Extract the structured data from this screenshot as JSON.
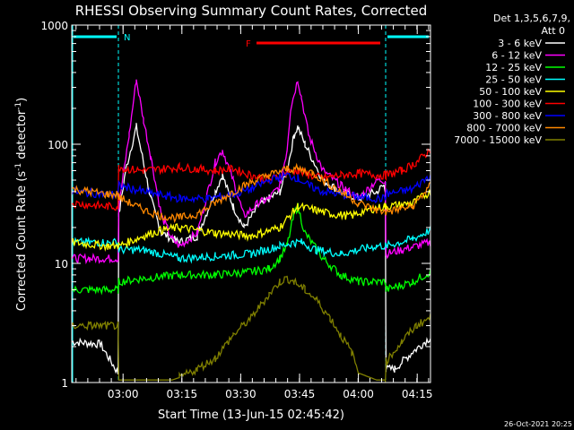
{
  "chart_data": {
    "type": "line",
    "title": "RHESSI Observing Summary Count Rates, Corrected",
    "xlabel": "Start Time (13-Jun-15 02:45:42)",
    "ylabel": "Corrected Count Rate (s⁻¹ detector⁻¹)",
    "ylabel_parts": [
      "Corrected Count Rate (s",
      "-1",
      " detector",
      "-1",
      ")"
    ],
    "yscale": "log",
    "ylim": [
      1,
      1000
    ],
    "xlim": [
      0,
      100
    ],
    "y_ticks": [
      {
        "value": 1,
        "label": "1"
      },
      {
        "value": 10,
        "label": "10"
      },
      {
        "value": 100,
        "label": "100"
      },
      {
        "value": 1000,
        "label": "1000"
      }
    ],
    "x_ticks": [
      {
        "value": 14.3,
        "label": "03:00"
      },
      {
        "value": 30.7,
        "label": "03:15"
      },
      {
        "value": 47.1,
        "label": "03:30"
      },
      {
        "value": 63.5,
        "label": "03:45"
      },
      {
        "value": 79.9,
        "label": "04:00"
      },
      {
        "value": 96.3,
        "label": "04:15"
      }
    ],
    "x_minor_step": 3.276,
    "legend": {
      "position": "right",
      "header": [
        "Det 1,3,5,6,7,9,",
        "Att 0"
      ]
    },
    "night_intervals": [
      [
        0,
        13.0
      ],
      [
        87.5,
        100
      ]
    ],
    "flags": [
      {
        "label": "N",
        "start": 0,
        "end": 13.0,
        "color": "#00ffff",
        "level": "top"
      },
      {
        "label": "",
        "start": 87.5,
        "end": 100,
        "color": "#00ffff",
        "level": "top"
      },
      {
        "label": "F",
        "start": 51,
        "end": 86.5,
        "color": "#ff0000",
        "level": "second"
      }
    ],
    "series": [
      {
        "name": "3 - 6 keV",
        "color": "#ffffff",
        "x": [
          0,
          8,
          12.9,
          13.1,
          15,
          18,
          20,
          22,
          25,
          30,
          35,
          40,
          42,
          45,
          48,
          52,
          55,
          58,
          60,
          62,
          63,
          65,
          70,
          75,
          80,
          85,
          87,
          87.4,
          87.6,
          90,
          95,
          100
        ],
        "y": [
          2.2,
          2.1,
          1.2,
          25,
          60,
          140,
          70,
          35,
          18,
          15,
          17,
          40,
          55,
          30,
          20,
          30,
          35,
          40,
          60,
          120,
          140,
          100,
          50,
          40,
          35,
          40,
          45,
          40,
          1.3,
          1.3,
          1.8,
          2.4
        ]
      },
      {
        "name": "6 - 12 keV",
        "color": "#ff00ff",
        "x": [
          0,
          5,
          10,
          12.9,
          13.1,
          16,
          18,
          20,
          22,
          25,
          28,
          30,
          35,
          40,
          42,
          45,
          48,
          52,
          55,
          58,
          60,
          61,
          63,
          64,
          66,
          70,
          75,
          80,
          85,
          87.4,
          87.6,
          92,
          100
        ],
        "y": [
          11,
          11,
          11,
          11,
          30,
          120,
          350,
          160,
          80,
          25,
          16,
          14,
          18,
          70,
          90,
          50,
          25,
          32,
          35,
          45,
          90,
          200,
          350,
          250,
          120,
          60,
          45,
          35,
          50,
          50,
          12,
          13,
          15
        ]
      },
      {
        "name": "12 - 25 keV",
        "color": "#00ff00",
        "x": [
          0,
          10,
          12.9,
          13.1,
          20,
          30,
          40,
          50,
          55,
          58,
          60,
          62,
          63,
          65,
          70,
          75,
          80,
          87.4,
          87.6,
          95,
          100
        ],
        "y": [
          6,
          6,
          6,
          7,
          7.5,
          8,
          8,
          8.5,
          9,
          11,
          14,
          26,
          30,
          18,
          11,
          8,
          7,
          7,
          6,
          7,
          8.5
        ]
      },
      {
        "name": "25 - 50 keV",
        "color": "#00ffff",
        "x": [
          0,
          10,
          12.9,
          13.1,
          20,
          30,
          40,
          50,
          58,
          62,
          64,
          68,
          75,
          80,
          85,
          87.4,
          87.6,
          95,
          100
        ],
        "y": [
          15,
          15,
          15,
          13,
          13,
          11,
          11.5,
          12,
          14,
          15,
          15,
          13,
          12,
          13,
          14,
          14,
          14,
          16,
          19
        ]
      },
      {
        "name": "50 - 100 keV",
        "color": "#ffff00",
        "x": [
          0,
          10,
          12.9,
          13.1,
          20,
          25,
          30,
          40,
          50,
          58,
          63,
          68,
          72,
          78,
          82,
          87.4,
          87.6,
          95,
          100
        ],
        "y": [
          15,
          14,
          14,
          14,
          17,
          19,
          20,
          18,
          17,
          20,
          30,
          28,
          26,
          25,
          28,
          30,
          30,
          32,
          40
        ]
      },
      {
        "name": "100 - 300 keV",
        "color": "#ff0000",
        "x": [
          0,
          5,
          10,
          12.9,
          13.1,
          15,
          20,
          25,
          30,
          35,
          40,
          45,
          50,
          55,
          60,
          63,
          66,
          70,
          75,
          80,
          85,
          87.4,
          87.6,
          92,
          96,
          100
        ],
        "y": [
          32,
          31,
          30,
          30,
          65,
          62,
          60,
          62,
          64,
          62,
          60,
          62,
          55,
          50,
          58,
          60,
          55,
          52,
          55,
          57,
          55,
          55,
          55,
          60,
          70,
          90
        ]
      },
      {
        "name": "300 - 800 keV",
        "color": "#0000ff",
        "x": [
          0,
          10,
          12.9,
          13.1,
          20,
          30,
          38,
          45,
          50,
          55,
          60,
          63,
          66,
          70,
          75,
          80,
          85,
          87.4,
          87.6,
          95,
          100
        ],
        "y": [
          40,
          38,
          38,
          45,
          40,
          35,
          35,
          38,
          42,
          50,
          55,
          52,
          45,
          40,
          38,
          36,
          35,
          35,
          38,
          42,
          55
        ]
      },
      {
        "name": "800 - 7000 keV",
        "color": "#ff8800",
        "x": [
          0,
          5,
          10,
          12.9,
          13.1,
          20,
          25,
          30,
          35,
          40,
          45,
          50,
          55,
          60,
          63,
          67,
          70,
          75,
          80,
          85,
          87.4,
          87.6,
          95,
          100
        ],
        "y": [
          42,
          40,
          38,
          38,
          36,
          28,
          25,
          24,
          26,
          32,
          40,
          48,
          55,
          62,
          62,
          58,
          50,
          40,
          32,
          28,
          27,
          27,
          30,
          45
        ]
      },
      {
        "name": "7000 - 15000 keV",
        "color": "#808000",
        "x": [
          0,
          5,
          10,
          12.9,
          13.1,
          20,
          25,
          28,
          30,
          35,
          40,
          45,
          50,
          55,
          58,
          60,
          62,
          65,
          68,
          72,
          75,
          78,
          80,
          85,
          87.4,
          87.6,
          92,
          96,
          100
        ],
        "y": [
          3,
          3,
          3,
          3,
          1.05,
          1.05,
          1.05,
          1.05,
          1.1,
          1.3,
          1.6,
          2.5,
          3.5,
          5.5,
          7,
          7.5,
          7,
          6,
          5,
          3.5,
          2.5,
          1.8,
          1.2,
          1.05,
          1.05,
          1.5,
          2.2,
          3,
          3.5
        ]
      }
    ]
  },
  "footer": {
    "date": "26-Oct-2021 20:25"
  }
}
